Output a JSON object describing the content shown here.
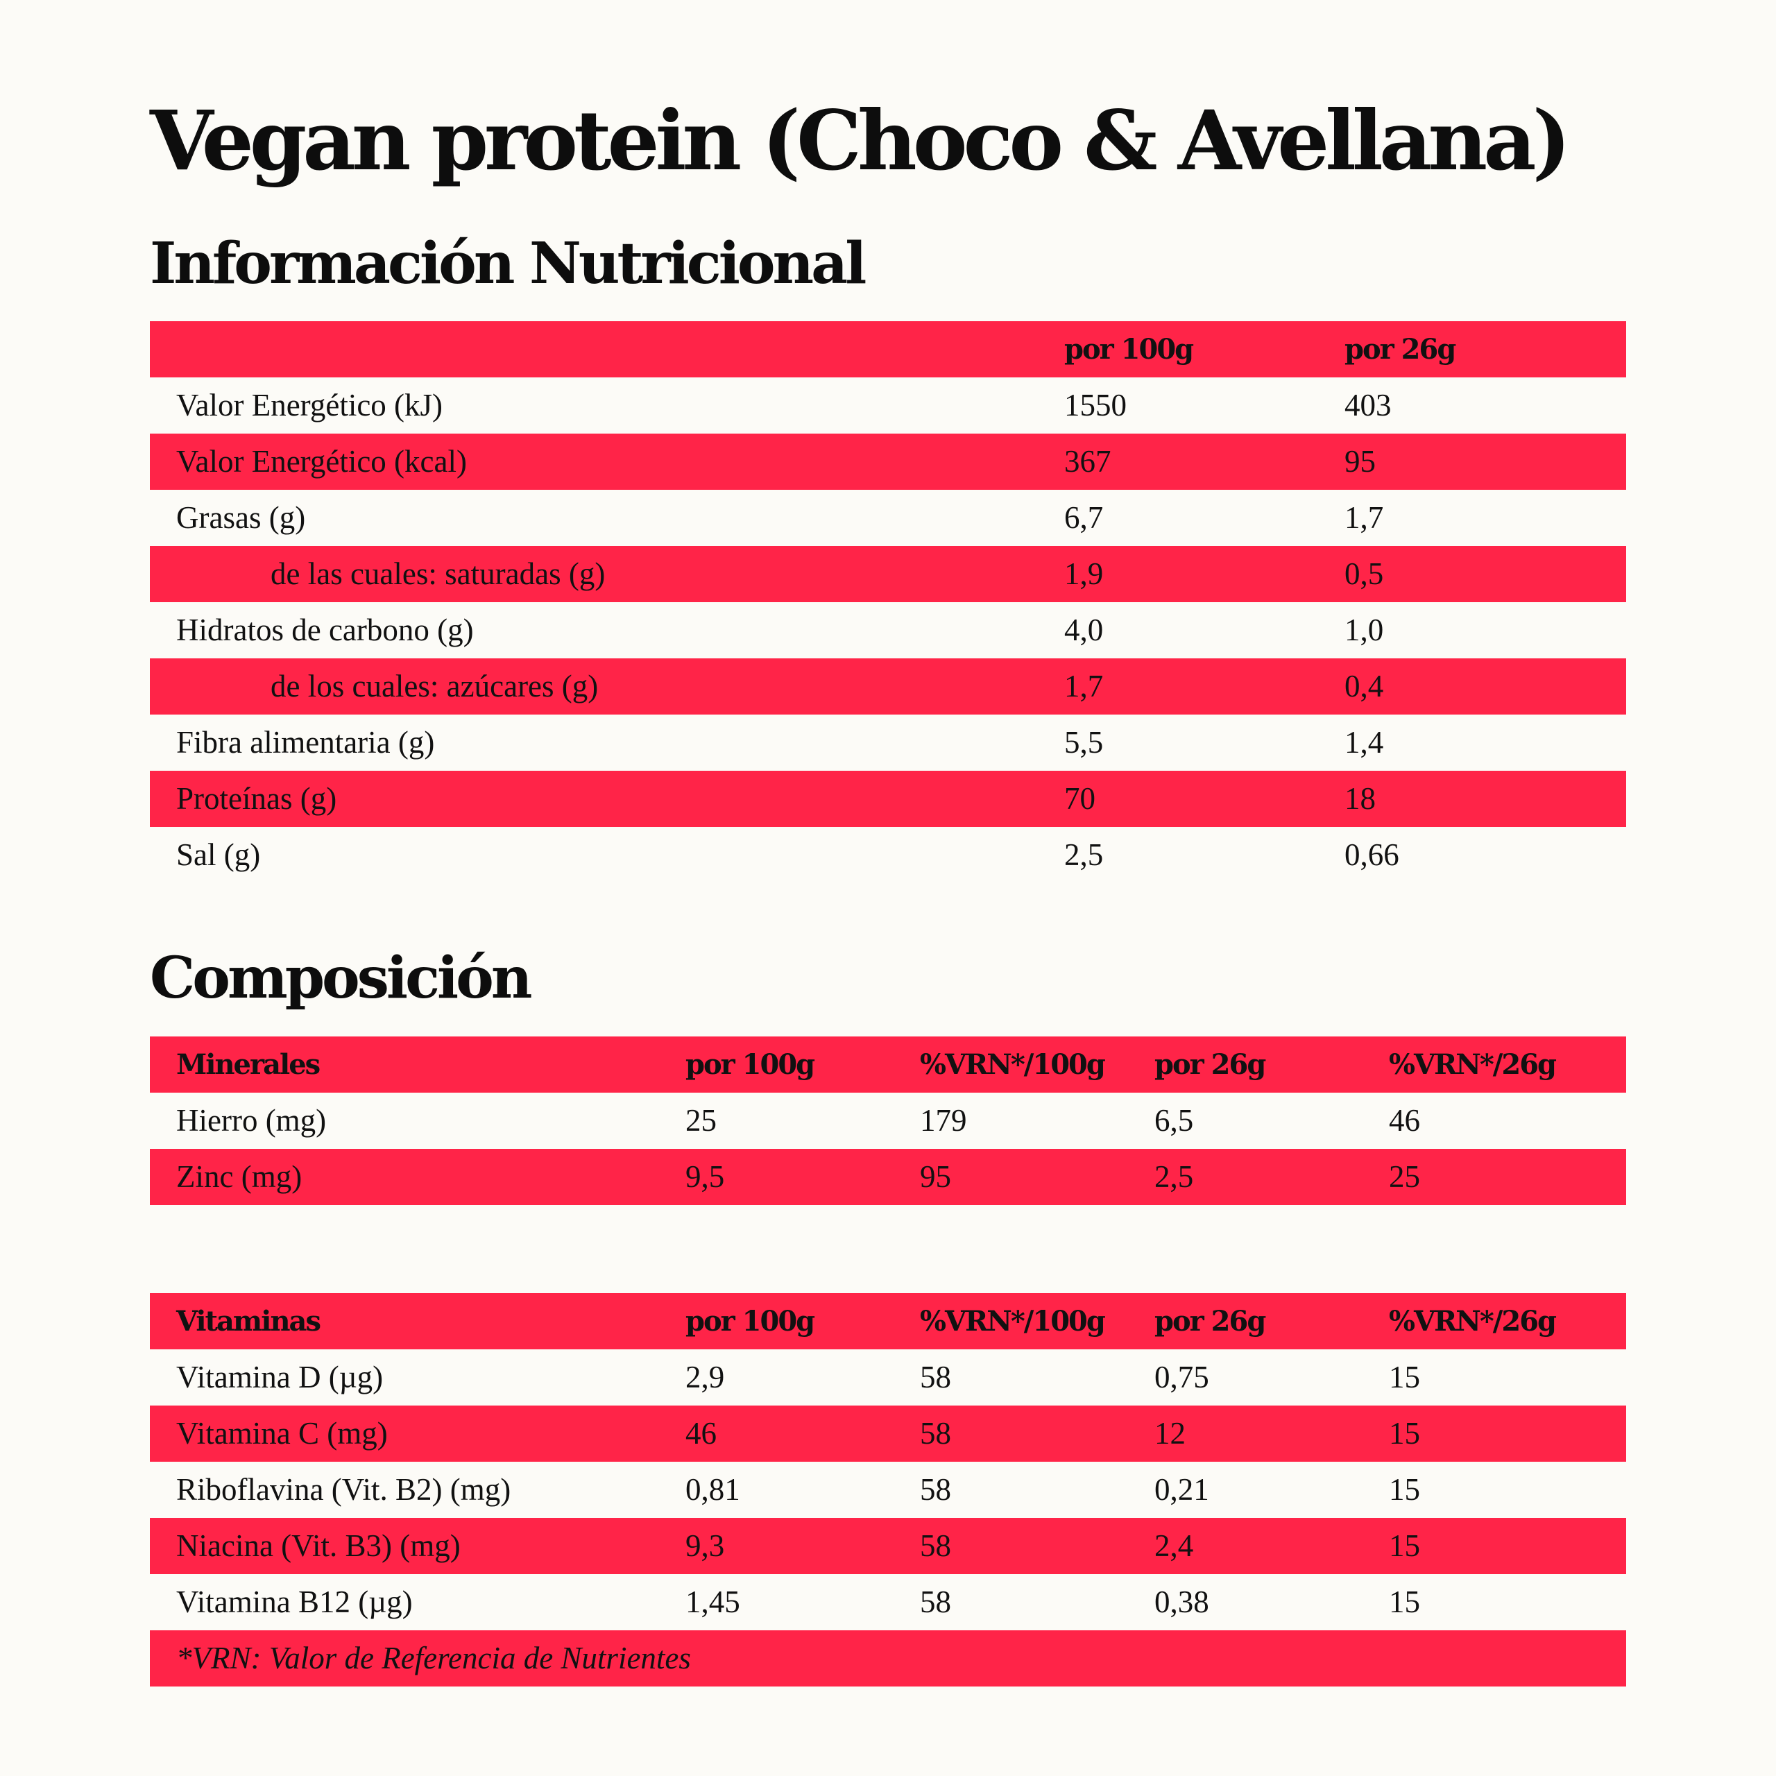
{
  "title": "Vegan protein (Choco & Avellana)",
  "nutrition": {
    "heading": "Información Nutricional",
    "columns": [
      "",
      "por 100g",
      "por 26g"
    ],
    "rows": [
      {
        "label": "Valor Energético (kJ)",
        "per100": "1550",
        "per26": "403"
      },
      {
        "label": "Valor Energético (kcal)",
        "per100": "367",
        "per26": "95"
      },
      {
        "label": "Grasas (g)",
        "per100": "6,7",
        "per26": "1,7"
      },
      {
        "label": "de las cuales: saturadas (g)",
        "per100": "1,9",
        "per26": "0,5"
      },
      {
        "label": "Hidratos de carbono (g)",
        "per100": "4,0",
        "per26": "1,0"
      },
      {
        "label": "de los cuales: azúcares (g)",
        "per100": "1,7",
        "per26": "0,4"
      },
      {
        "label": "Fibra alimentaria (g)",
        "per100": "5,5",
        "per26": "1,4"
      },
      {
        "label": "Proteínas (g)",
        "per100": "70",
        "per26": "18"
      },
      {
        "label": "Sal (g)",
        "per100": "2,5",
        "per26": "0,66"
      }
    ]
  },
  "composition": {
    "heading": "Composición",
    "minerals": {
      "columns": [
        "Minerales",
        "por 100g",
        "%VRN*/100g",
        "por 26g",
        "%VRN*/26g"
      ],
      "rows": [
        {
          "label": "Hierro (mg)",
          "per100": "25",
          "vrn100": "179",
          "per26": "6,5",
          "vrn26": "46"
        },
        {
          "label": "Zinc (mg)",
          "per100": "9,5",
          "vrn100": "95",
          "per26": "2,5",
          "vrn26": "25"
        }
      ]
    },
    "vitamins": {
      "columns": [
        "Vitaminas",
        "por 100g",
        "%VRN*/100g",
        "por 26g",
        "%VRN*/26g"
      ],
      "rows": [
        {
          "label": "Vitamina D (µg)",
          "per100": "2,9",
          "vrn100": "58",
          "per26": "0,75",
          "vrn26": "15"
        },
        {
          "label": "Vitamina C (mg)",
          "per100": "46",
          "vrn100": "58",
          "per26": "12",
          "vrn26": "15"
        },
        {
          "label": "Riboflavina (Vit. B2) (mg)",
          "per100": "0,81",
          "vrn100": "58",
          "per26": "0,21",
          "vrn26": "15"
        },
        {
          "label": "Niacina (Vit. B3) (mg)",
          "per100": "9,3",
          "vrn100": "58",
          "per26": "2,4",
          "vrn26": "15"
        },
        {
          "label": "Vitamina B12 (µg)",
          "per100": "1,45",
          "vrn100": "58",
          "per26": "0,38",
          "vrn26": "15"
        }
      ]
    },
    "footnote": "*VRN: Valor de Referencia de Nutrientes"
  },
  "colors": {
    "accent_red": "#ff2448",
    "background": "#fcfbf7",
    "text": "#111111"
  }
}
